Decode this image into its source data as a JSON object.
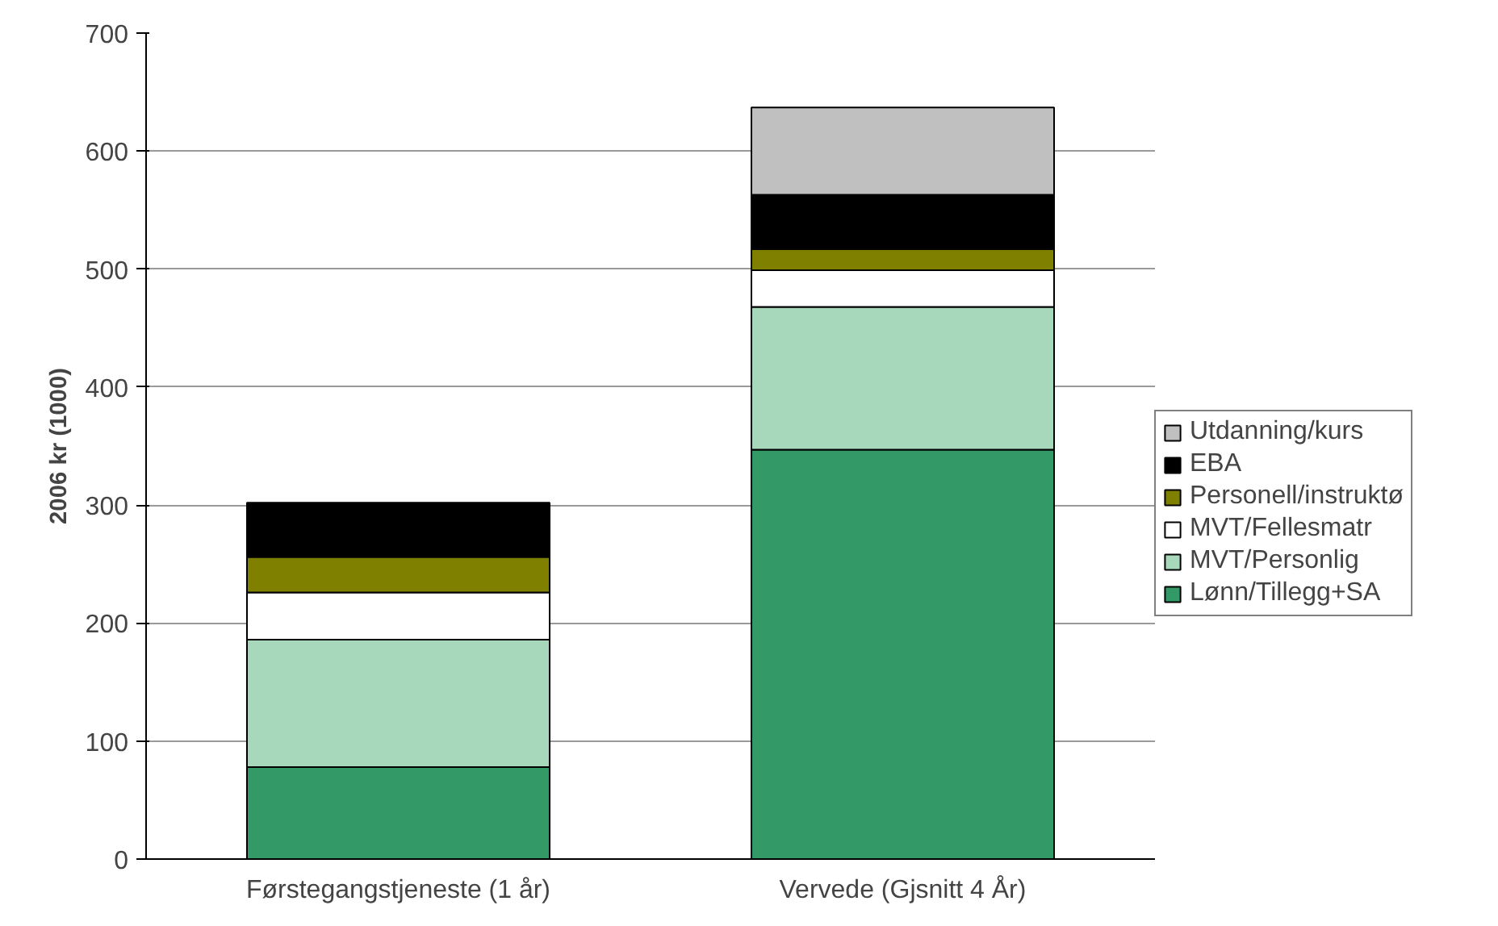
{
  "chart_data": {
    "type": "bar",
    "stacked": true,
    "ylabel": "2006 kr (1000)",
    "categories": [
      "Førstegangstjeneste (1 år)",
      "Vervede (Gjsnitt 4 År)"
    ],
    "series": [
      {
        "name": "Lønn/Tillegg+SA",
        "color": "#339966",
        "values": [
          78,
          347
        ]
      },
      {
        "name": "MVT/Personlig",
        "color": "#a8d8bb",
        "values": [
          108,
          121
        ]
      },
      {
        "name": "MVT/Fellesmatr",
        "color": "#ffffff",
        "values": [
          40,
          31
        ]
      },
      {
        "name": "Personell/instruktø",
        "color": "#808000",
        "values": [
          30,
          18
        ]
      },
      {
        "name": "EBA",
        "color": "#000000",
        "values": [
          46,
          46
        ]
      },
      {
        "name": "Utdanning/kurs",
        "color": "#c0c0c0",
        "values": [
          null,
          74
        ]
      }
    ],
    "ylim": [
      0,
      700
    ],
    "yticks": [
      0,
      100,
      200,
      300,
      400,
      500,
      600,
      700
    ],
    "grid": "y",
    "legend": "right"
  }
}
